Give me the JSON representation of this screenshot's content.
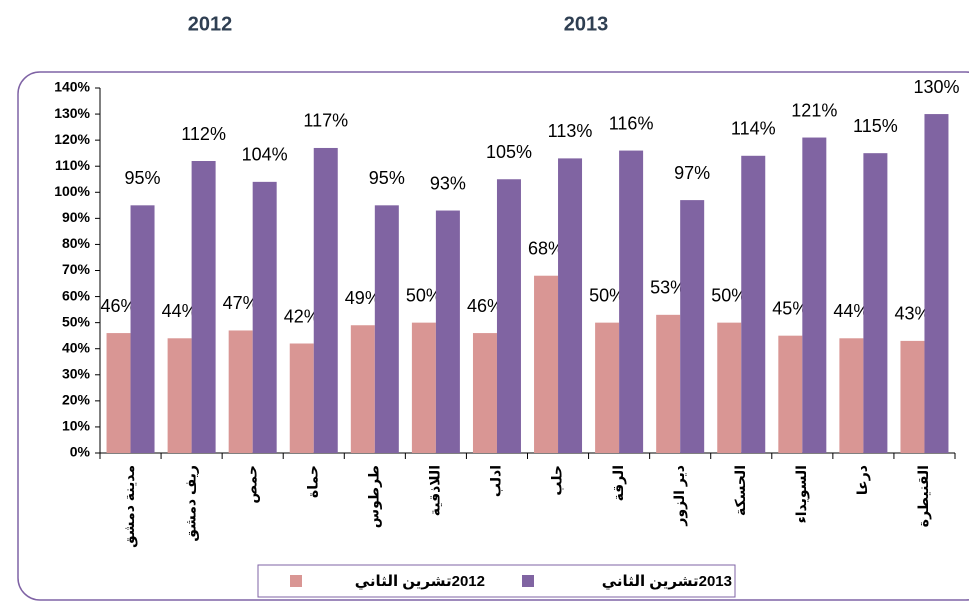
{
  "headers": [
    "2012",
    "2013"
  ],
  "chart_data": {
    "type": "bar",
    "categories": [
      "مدينة دمشق",
      "ريف دمشق",
      "حمص",
      "حماة",
      "طرطوس",
      "اللاذقية",
      "ادلب",
      "حلب",
      "الرقة",
      "دير الزور",
      "الحسكة",
      "السويداء",
      "درعا",
      "القنيطرة"
    ],
    "series": [
      {
        "name": "2012تشرين الثاني",
        "color": "#d99694",
        "values": [
          46,
          44,
          47,
          42,
          49,
          50,
          46,
          68,
          50,
          53,
          50,
          45,
          44,
          43
        ],
        "value_labels": [
          "46%",
          "44%",
          "47%",
          "42%",
          "49%",
          "50%",
          "46%",
          "68%",
          "50%",
          "53%",
          "50%",
          "45%",
          "44%",
          "43%"
        ]
      },
      {
        "name": "2013تشرين الثاني",
        "color": "#8064a2",
        "values": [
          95,
          112,
          104,
          117,
          95,
          93,
          105,
          113,
          116,
          97,
          114,
          121,
          115,
          130
        ],
        "value_labels": [
          "95%",
          "112%",
          "104%",
          "117%",
          "95%",
          "93%",
          "105%",
          "113%",
          "116%",
          "97%",
          "114%",
          "121%",
          "115%",
          "130%"
        ]
      }
    ],
    "ylim": [
      0,
      140
    ],
    "yticks": [
      {
        "value": 0,
        "label": "0%"
      },
      {
        "value": 10,
        "label": "10%"
      },
      {
        "value": 20,
        "label": "20%"
      },
      {
        "value": 30,
        "label": "30%"
      },
      {
        "value": 40,
        "label": "40%"
      },
      {
        "value": 50,
        "label": "50%"
      },
      {
        "value": 60,
        "label": "60%"
      },
      {
        "value": 70,
        "label": "70%"
      },
      {
        "value": 80,
        "label": "80%"
      },
      {
        "value": 90,
        "label": "90%"
      },
      {
        "value": 100,
        "label": "100%"
      },
      {
        "value": 110,
        "label": "110%"
      },
      {
        "value": 120,
        "label": "120%"
      },
      {
        "value": 130,
        "label": "130%"
      },
      {
        "value": 140,
        "label": "140%"
      }
    ],
    "grid": false,
    "legend": "bottom"
  }
}
